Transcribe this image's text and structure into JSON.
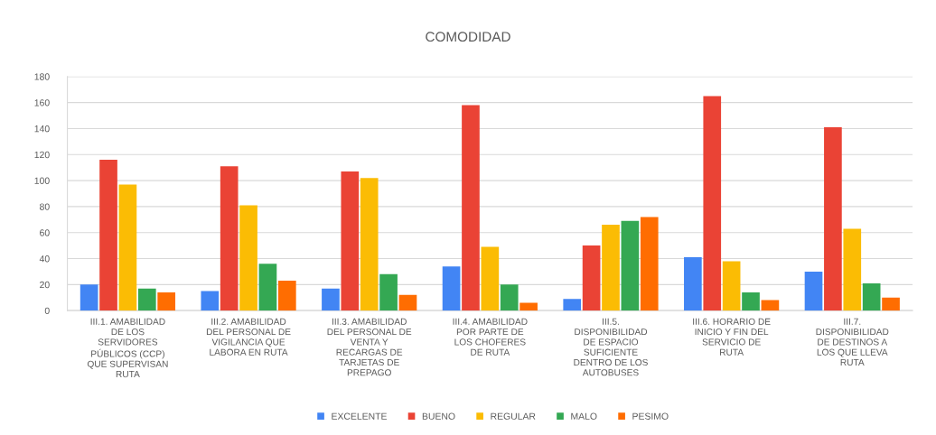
{
  "chart_data": {
    "type": "bar",
    "title": "COMODIDAD",
    "categories": [
      "III.1. AMABILIDAD\nDE LOS\nSERVIDORES\nPÚBLICOS (CCP)\nQUE SUPERVISAN\nRUTA",
      "III.2. AMABILIDAD\nDEL PERSONAL DE\nVIGILANCIA QUE\nLABORA EN RUTA",
      "III.3. AMABILIDAD\nDEL PERSONAL DE\nVENTA Y\nRECARGAS DE\nTARJETAS DE\nPREPAGO",
      "III.4. AMABILIDAD\nPOR PARTE DE\nLOS CHOFERES\nDE RUTA",
      "III.5.\nDISPONIBILIDAD\nDE ESPACIO\nSUFICIENTE\nDENTRO DE LOS\nAUTOBUSES",
      "III.6. HORARIO DE\nINICIO Y FIN DEL\nSERVICIO DE\nRUTA",
      "III.7.\nDISPONIBILIDAD\nDE DESTINOS A\nLOS QUE LLEVA\nRUTA"
    ],
    "series": [
      {
        "name": "EXCELENTE",
        "color": "#4285f4",
        "values": [
          20,
          15,
          17,
          34,
          9,
          41,
          30
        ]
      },
      {
        "name": "BUENO",
        "color": "#ea4335",
        "values": [
          116,
          111,
          107,
          158,
          50,
          165,
          141
        ]
      },
      {
        "name": "REGULAR",
        "color": "#fbbc04",
        "values": [
          97,
          81,
          102,
          49,
          66,
          38,
          63
        ]
      },
      {
        "name": "MALO",
        "color": "#34a853",
        "values": [
          17,
          36,
          28,
          20,
          69,
          14,
          21
        ]
      },
      {
        "name": "PESIMO",
        "color": "#ff6d01",
        "values": [
          14,
          23,
          12,
          6,
          72,
          8,
          10
        ]
      }
    ],
    "ylim": [
      0,
      180
    ],
    "yticks": [
      0,
      20,
      40,
      60,
      80,
      100,
      120,
      140,
      160,
      180
    ],
    "grid": "y",
    "legend": "bottom"
  }
}
